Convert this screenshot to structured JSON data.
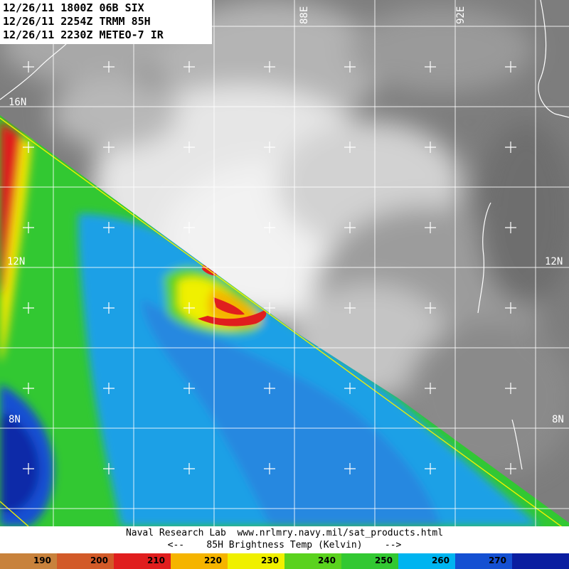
{
  "header": {
    "line1": "12/26/11 1800Z 06B SIX",
    "line2": "12/26/11 2254Z TRMM 85H",
    "line3": "12/26/11 2230Z METEO-7 IR"
  },
  "grid_labels": {
    "lat": [
      {
        "text": "16N"
      },
      {
        "text": "12N"
      },
      {
        "text": "12N"
      },
      {
        "text": "8N"
      },
      {
        "text": "8N"
      }
    ],
    "lon": [
      {
        "text": "88E"
      },
      {
        "text": "92E"
      }
    ]
  },
  "footer": {
    "line1": "Naval Research Lab  www.nrlmry.navy.mil/sat_products.html",
    "line2": "<--    85H Brightness Temp (Kelvin)    -->"
  },
  "colorbar": {
    "segments": [
      {
        "label": "190",
        "color": "#c8823c"
      },
      {
        "label": "200",
        "color": "#d25a28"
      },
      {
        "label": "210",
        "color": "#e01e1e"
      },
      {
        "label": "220",
        "color": "#f5b400"
      },
      {
        "label": "230",
        "color": "#f0f000"
      },
      {
        "label": "240",
        "color": "#5ad21e"
      },
      {
        "label": "250",
        "color": "#32c832"
      },
      {
        "label": "260",
        "color": "#00b4f0"
      },
      {
        "label": "270",
        "color": "#1450d2"
      },
      {
        "label": "",
        "color": "#0a1ea0"
      }
    ]
  }
}
